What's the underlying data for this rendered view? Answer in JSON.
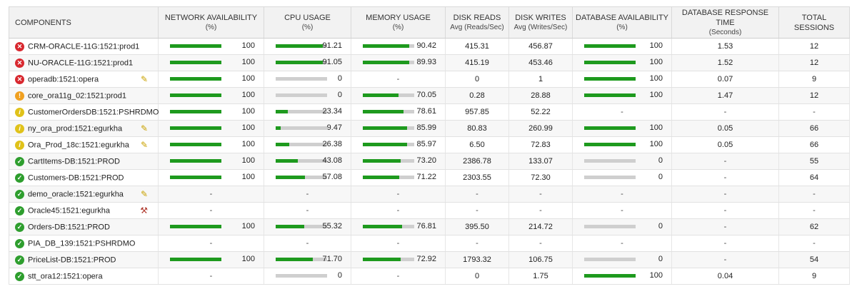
{
  "headers": {
    "components": "COMPONENTS",
    "net_title": "NETWORK AVAILABILITY",
    "net_unit": "(%)",
    "cpu_title": "CPU USAGE",
    "cpu_unit": "(%)",
    "mem_title": "MEMORY USAGE",
    "mem_unit": "(%)",
    "dr_title": "DISK READS",
    "dr_unit": "Avg (Reads/Sec)",
    "dw_title": "DISK WRITES",
    "dw_unit": "Avg (Writes/Sec)",
    "dba_title": "DATABASE AVAILABILITY",
    "dba_unit": "(%)",
    "drt_title": "DATABASE RESPONSE TIME",
    "drt_unit": "(Seconds)",
    "ts_title": "TOTAL SESSIONS"
  },
  "colors": {
    "bar_fill": "#1e9a1e",
    "bar_track": "#cfcfcf",
    "critical": "#d8282f",
    "major": "#f0a020",
    "minor": "#e0c21a",
    "ok": "#2e9e2e"
  },
  "rows": [
    {
      "name": "CRM-ORACLE-11G:1521:prod1",
      "status": "critical",
      "action": "",
      "net": "100",
      "cpu": "91.21",
      "mem": "90.42",
      "dr": "415.31",
      "dw": "456.87",
      "dba": "100",
      "drt": "1.53",
      "ts": "12"
    },
    {
      "name": "NU-ORACLE-11G:1521:prod1",
      "status": "critical",
      "action": "",
      "net": "100",
      "cpu": "91.05",
      "mem": "89.93",
      "dr": "415.19",
      "dw": "453.46",
      "dba": "100",
      "drt": "1.52",
      "ts": "12"
    },
    {
      "name": "operadb:1521:opera",
      "status": "critical",
      "action": "pencil-icon",
      "net": "100",
      "cpu": "0",
      "mem": "-",
      "dr": "0",
      "dw": "1",
      "dba": "100",
      "drt": "0.07",
      "ts": "9"
    },
    {
      "name": "core_ora11g_02:1521:prod1",
      "status": "major",
      "action": "",
      "net": "100",
      "cpu": "0",
      "mem": "70.05",
      "dr": "0.28",
      "dw": "28.88",
      "dba": "100",
      "drt": "1.47",
      "ts": "12"
    },
    {
      "name": "CustomerOrdersDB:1521:PSHRDMO",
      "status": "minor",
      "action": "",
      "net": "100",
      "cpu": "23.34",
      "mem": "78.61",
      "dr": "957.85",
      "dw": "52.22",
      "dba": "-",
      "drt": "-",
      "ts": "-"
    },
    {
      "name": "ny_ora_prod:1521:egurkha",
      "status": "minor",
      "action": "pencil-icon",
      "net": "100",
      "cpu": "9.47",
      "mem": "85.99",
      "dr": "80.83",
      "dw": "260.99",
      "dba": "100",
      "drt": "0.05",
      "ts": "66"
    },
    {
      "name": "Ora_Prod_18c:1521:egurkha",
      "status": "minor",
      "action": "pencil-icon",
      "net": "100",
      "cpu": "26.38",
      "mem": "85.97",
      "dr": "6.50",
      "dw": "72.83",
      "dba": "100",
      "drt": "0.05",
      "ts": "66"
    },
    {
      "name": "CartItems-DB:1521:PROD",
      "status": "ok",
      "action": "",
      "net": "100",
      "cpu": "43.08",
      "mem": "73.20",
      "dr": "2386.78",
      "dw": "133.07",
      "dba": "0",
      "drt": "-",
      "ts": "55"
    },
    {
      "name": "Customers-DB:1521:PROD",
      "status": "ok",
      "action": "",
      "net": "100",
      "cpu": "57.08",
      "mem": "71.22",
      "dr": "2303.55",
      "dw": "72.30",
      "dba": "0",
      "drt": "-",
      "ts": "64"
    },
    {
      "name": "demo_oracle:1521:egurkha",
      "status": "ok",
      "action": "pencil-icon",
      "net": "-",
      "cpu": "-",
      "mem": "-",
      "dr": "-",
      "dw": "-",
      "dba": "-",
      "drt": "-",
      "ts": "-"
    },
    {
      "name": "Oracle45:1521:egurkha",
      "status": "ok",
      "action": "tools-icon",
      "net": "-",
      "cpu": "-",
      "mem": "-",
      "dr": "-",
      "dw": "-",
      "dba": "-",
      "drt": "-",
      "ts": "-"
    },
    {
      "name": "Orders-DB:1521:PROD",
      "status": "ok",
      "action": "",
      "net": "100",
      "cpu": "55.32",
      "mem": "76.81",
      "dr": "395.50",
      "dw": "214.72",
      "dba": "0",
      "drt": "-",
      "ts": "62"
    },
    {
      "name": "PIA_DB_139:1521:PSHRDMO",
      "status": "ok",
      "action": "",
      "net": "-",
      "cpu": "-",
      "mem": "-",
      "dr": "-",
      "dw": "-",
      "dba": "-",
      "drt": "-",
      "ts": "-"
    },
    {
      "name": "PriceList-DB:1521:PROD",
      "status": "ok",
      "action": "",
      "net": "100",
      "cpu": "71.70",
      "mem": "72.92",
      "dr": "1793.32",
      "dw": "106.75",
      "dba": "0",
      "drt": "-",
      "ts": "54"
    },
    {
      "name": "stt_ora12:1521:opera",
      "status": "ok",
      "action": "",
      "net": "-",
      "cpu": "0",
      "mem": "-",
      "dr": "0",
      "dw": "1.75",
      "dba": "100",
      "drt": "0.04",
      "ts": "9"
    }
  ]
}
